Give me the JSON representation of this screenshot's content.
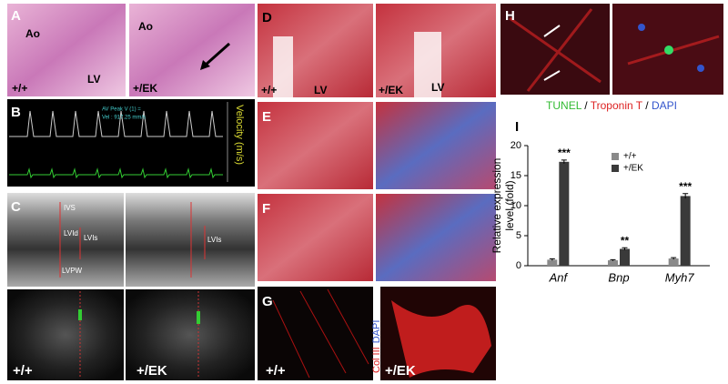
{
  "panels": [
    {
      "label": "A",
      "texts": [
        "Ao",
        "LV",
        "+/+",
        "Ao",
        "+/EK"
      ]
    },
    {
      "label": "B",
      "texts": [
        "AV Peak V (1) =",
        "Vel : 917.25 mm/s",
        "Velocity (m/s)"
      ]
    },
    {
      "label": "C",
      "texts": [
        "IVS",
        "LVId",
        "LVIs",
        "LVPW",
        "LVIs",
        "+/+",
        "+/EK"
      ]
    },
    {
      "label": "D",
      "texts": [
        "+/+",
        "LV",
        "+/EK",
        "LV"
      ]
    },
    {
      "label": "E",
      "texts": []
    },
    {
      "label": "F",
      "texts": []
    },
    {
      "label": "G",
      "texts": [
        "Col III",
        "DAPI",
        "+/+",
        "+/EK"
      ]
    },
    {
      "label": "H",
      "texts": [
        "TUNEL",
        "/",
        "Troponin T",
        "/",
        "DAPI"
      ]
    }
  ],
  "chart_data": {
    "type": "bar",
    "panel_label": "I",
    "ylabel": [
      "Relative expression",
      "level (fold)"
    ],
    "categories": [
      "Anf",
      "Bnp",
      "Myh7"
    ],
    "series": [
      {
        "name": "+/+",
        "color": "#8a8a8a",
        "values": [
          1.0,
          0.9,
          1.2
        ],
        "errors": [
          0.15,
          0.1,
          0.15
        ]
      },
      {
        "name": "+/EK",
        "color": "#3a3a3a",
        "values": [
          17.3,
          2.8,
          11.6
        ],
        "errors": [
          0.3,
          0.2,
          0.4
        ]
      }
    ],
    "annotations": [
      "***",
      "**",
      "***"
    ],
    "ylim": [
      0,
      20
    ],
    "yticks": [
      0,
      5,
      10,
      15,
      20
    ],
    "legend": "upper center"
  }
}
